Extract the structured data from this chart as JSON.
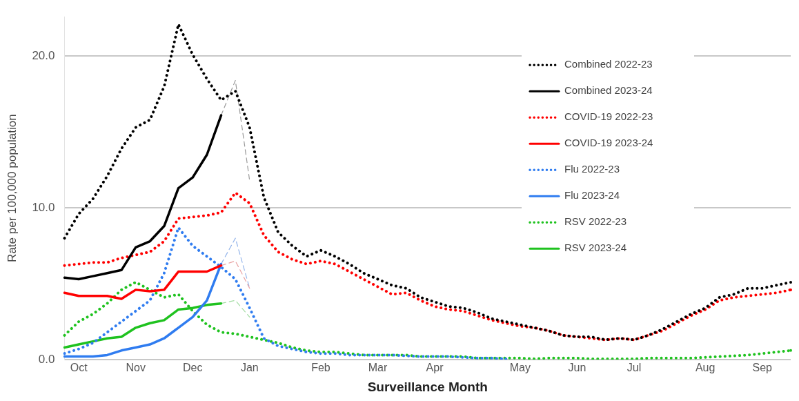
{
  "chart_data": {
    "type": "line",
    "xlabel": "Surveillance Month",
    "ylabel": "Rate per 100,000 population",
    "categories": [
      null,
      "Oct",
      null,
      null,
      null,
      "Nov",
      null,
      null,
      null,
      "Dec",
      null,
      null,
      null,
      "Jan",
      null,
      null,
      null,
      null,
      "Feb",
      null,
      null,
      null,
      "Mar",
      null,
      null,
      null,
      "Apr",
      null,
      null,
      null,
      null,
      null,
      "May",
      null,
      null,
      null,
      "Jun",
      null,
      null,
      null,
      "Jul",
      null,
      null,
      null,
      null,
      "Aug",
      null,
      null,
      null,
      "Sep",
      null,
      null
    ],
    "ylim": [
      0,
      22.6
    ],
    "yticks": [
      {
        "value": 0,
        "label": "0.0"
      },
      {
        "value": 10,
        "label": "10.0"
      },
      {
        "value": 20,
        "label": "20.0"
      }
    ],
    "grid": "y",
    "legend": "top right",
    "marker": "none",
    "series": [
      {
        "name": "Combined 2022-23",
        "color": "#000000",
        "line_style": "dotted",
        "values": [
          8.0,
          9.6,
          10.6,
          12.1,
          13.9,
          15.3,
          15.8,
          18.0,
          22.1,
          20.1,
          18.5,
          17.1,
          17.7,
          15.3,
          10.7,
          8.4,
          7.5,
          6.8,
          7.2,
          6.8,
          6.3,
          5.7,
          5.3,
          4.9,
          4.7,
          4.1,
          3.8,
          3.5,
          3.4,
          3.1,
          2.7,
          2.5,
          2.3,
          2.1,
          1.9,
          1.6,
          1.5,
          1.5,
          1.3,
          1.4,
          1.3,
          1.6,
          2.0,
          2.5,
          3.0,
          3.4,
          4.1,
          4.3,
          4.7,
          4.7,
          4.9,
          5.1
        ]
      },
      {
        "name": "Combined 2023-24",
        "color": "#000000",
        "line_style": "solid",
        "values": [
          5.4,
          5.3,
          5.5,
          5.7,
          5.9,
          7.4,
          7.8,
          8.8,
          11.3,
          12.0,
          13.5,
          16.1,
          null,
          null,
          null,
          null,
          null,
          null,
          null,
          null,
          null,
          null,
          null,
          null,
          null,
          null,
          null,
          null,
          null,
          null,
          null,
          null,
          null,
          null,
          null,
          null,
          null,
          null,
          null,
          null,
          null,
          null,
          null,
          null,
          null,
          null,
          null,
          null,
          null,
          null,
          null,
          null
        ]
      },
      {
        "name": "COVID-19 2022-23",
        "color": "#ff0000",
        "line_style": "dotted",
        "values": [
          6.2,
          6.3,
          6.4,
          6.4,
          6.7,
          6.9,
          7.1,
          7.8,
          9.3,
          9.4,
          9.5,
          9.7,
          11.0,
          10.3,
          8.2,
          7.1,
          6.6,
          6.3,
          6.5,
          6.3,
          5.8,
          5.3,
          4.8,
          4.3,
          4.4,
          3.9,
          3.5,
          3.3,
          3.2,
          2.9,
          2.6,
          2.4,
          2.2,
          2.1,
          1.9,
          1.6,
          1.5,
          1.4,
          1.3,
          1.4,
          1.3,
          1.6,
          1.9,
          2.4,
          2.9,
          3.3,
          3.9,
          4.1,
          4.2,
          4.3,
          4.4,
          4.6
        ]
      },
      {
        "name": "COVID-19 2023-24",
        "color": "#ff0000",
        "line_style": "solid",
        "values": [
          4.4,
          4.2,
          4.2,
          4.2,
          4.0,
          4.6,
          4.5,
          4.6,
          5.8,
          5.8,
          5.8,
          6.2,
          null,
          null,
          null,
          null,
          null,
          null,
          null,
          null,
          null,
          null,
          null,
          null,
          null,
          null,
          null,
          null,
          null,
          null,
          null,
          null,
          null,
          null,
          null,
          null,
          null,
          null,
          null,
          null,
          null,
          null,
          null,
          null,
          null,
          null,
          null,
          null,
          null,
          null,
          null,
          null
        ]
      },
      {
        "name": "Flu 2022-23",
        "color": "#2f7cf0",
        "line_style": "dotted",
        "values": [
          0.4,
          0.7,
          1.1,
          1.8,
          2.5,
          3.2,
          3.9,
          5.7,
          8.7,
          7.5,
          6.8,
          6.1,
          5.3,
          3.4,
          1.4,
          0.9,
          0.7,
          0.5,
          0.4,
          0.4,
          0.3,
          0.3,
          0.3,
          0.3,
          0.25,
          0.2,
          0.2,
          0.2,
          0.15,
          0.1,
          0.1,
          0.05,
          null,
          null,
          null,
          null,
          null,
          null,
          null,
          null,
          null,
          null,
          null,
          null,
          null,
          null,
          null,
          null,
          null,
          null,
          null,
          null
        ]
      },
      {
        "name": "Flu 2023-24",
        "color": "#2f7cf0",
        "line_style": "solid",
        "values": [
          0.2,
          0.2,
          0.2,
          0.3,
          0.6,
          0.8,
          1.0,
          1.4,
          2.1,
          2.8,
          3.9,
          6.3,
          null,
          null,
          null,
          null,
          null,
          null,
          null,
          null,
          null,
          null,
          null,
          null,
          null,
          null,
          null,
          null,
          null,
          null,
          null,
          null,
          null,
          null,
          null,
          null,
          null,
          null,
          null,
          null,
          null,
          null,
          null,
          null,
          null,
          null,
          null,
          null,
          null,
          null,
          null,
          null
        ]
      },
      {
        "name": "RSV 2022-23",
        "color": "#1fc21f",
        "line_style": "dotted",
        "values": [
          1.6,
          2.5,
          3.0,
          3.7,
          4.6,
          5.1,
          4.6,
          4.1,
          4.3,
          3.2,
          2.3,
          1.8,
          1.7,
          1.5,
          1.3,
          1.1,
          0.8,
          0.6,
          0.5,
          0.5,
          0.4,
          0.3,
          0.3,
          0.3,
          0.3,
          0.2,
          0.2,
          0.2,
          0.2,
          0.1,
          0.1,
          0.1,
          0.1,
          0.05,
          0.1,
          0.1,
          0.1,
          0.05,
          0.05,
          0.05,
          0.05,
          0.1,
          0.1,
          0.1,
          0.1,
          0.15,
          0.2,
          0.25,
          0.3,
          0.4,
          0.5,
          0.6
        ]
      },
      {
        "name": "RSV 2023-24",
        "color": "#1fc21f",
        "line_style": "solid",
        "values": [
          0.8,
          1.0,
          1.2,
          1.4,
          1.5,
          2.1,
          2.4,
          2.6,
          3.3,
          3.4,
          3.6,
          3.7,
          null,
          null,
          null,
          null,
          null,
          null,
          null,
          null,
          null,
          null,
          null,
          null,
          null,
          null,
          null,
          null,
          null,
          null,
          null,
          null,
          null,
          null,
          null,
          null,
          null,
          null,
          null,
          null,
          null,
          null,
          null,
          null,
          null,
          null,
          null,
          null,
          null,
          null,
          null,
          null
        ]
      },
      {
        "color": "#9a9a9a",
        "line_style": "dashed",
        "values": [
          null,
          null,
          null,
          null,
          null,
          null,
          null,
          null,
          null,
          null,
          null,
          16.1,
          18.4,
          11.8,
          null,
          null,
          null,
          null,
          null,
          null,
          null,
          null,
          null,
          null,
          null,
          null,
          null,
          null,
          null,
          null,
          null,
          null,
          null,
          null,
          null,
          null,
          null,
          null,
          null,
          null,
          null,
          null,
          null,
          null,
          null,
          null,
          null,
          null,
          null,
          null,
          null,
          null
        ]
      },
      {
        "color": "#e9a3a3",
        "line_style": "dashed",
        "values": [
          null,
          null,
          null,
          null,
          null,
          null,
          null,
          null,
          null,
          null,
          null,
          6.2,
          6.5,
          4.7,
          null,
          null,
          null,
          null,
          null,
          null,
          null,
          null,
          null,
          null,
          null,
          null,
          null,
          null,
          null,
          null,
          null,
          null,
          null,
          null,
          null,
          null,
          null,
          null,
          null,
          null,
          null,
          null,
          null,
          null,
          null,
          null,
          null,
          null,
          null,
          null,
          null,
          null
        ]
      },
      {
        "color": "#93b4ea",
        "line_style": "dashed",
        "values": [
          null,
          null,
          null,
          null,
          null,
          null,
          null,
          null,
          null,
          null,
          null,
          6.3,
          8.0,
          4.7,
          null,
          null,
          null,
          null,
          null,
          null,
          null,
          null,
          null,
          null,
          null,
          null,
          null,
          null,
          null,
          null,
          null,
          null,
          null,
          null,
          null,
          null,
          null,
          null,
          null,
          null,
          null,
          null,
          null,
          null,
          null,
          null,
          null,
          null,
          null,
          null,
          null,
          null
        ]
      },
      {
        "color": "#a3dca3",
        "line_style": "dashed",
        "values": [
          null,
          null,
          null,
          null,
          null,
          null,
          null,
          null,
          null,
          null,
          null,
          3.7,
          3.9,
          2.8,
          null,
          null,
          null,
          null,
          null,
          null,
          null,
          null,
          null,
          null,
          null,
          null,
          null,
          null,
          null,
          null,
          null,
          null,
          null,
          null,
          null,
          null,
          null,
          null,
          null,
          null,
          null,
          null,
          null,
          null,
          null,
          null,
          null,
          null,
          null,
          null,
          null,
          null
        ]
      }
    ]
  }
}
